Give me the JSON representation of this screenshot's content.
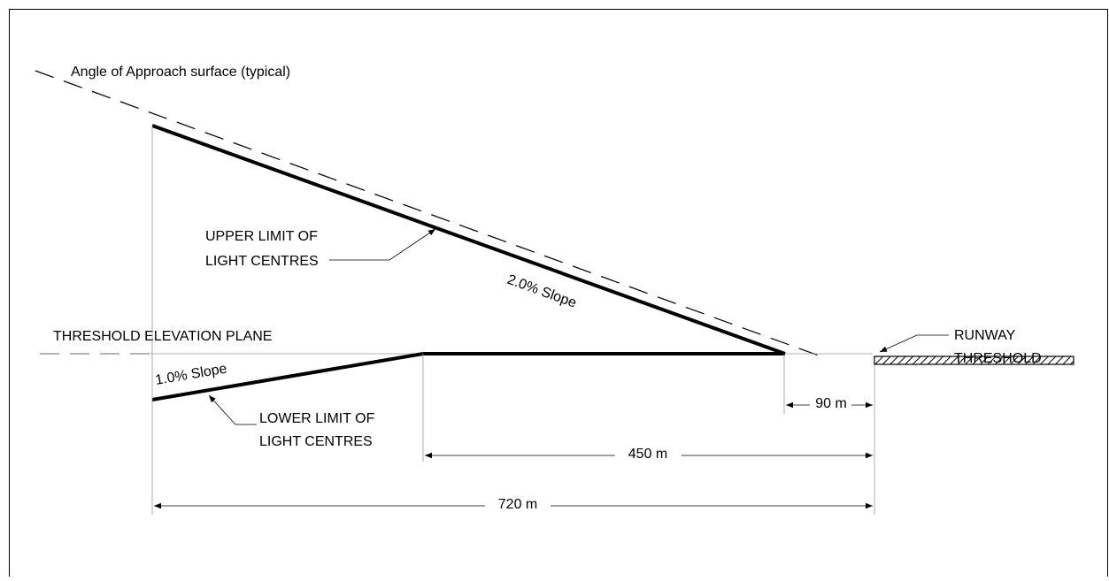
{
  "labels": {
    "approach_surface": "Angle of Approach surface (typical)",
    "upper_limit": [
      "UPPER LIMIT OF",
      "LIGHT CENTRES"
    ],
    "upper_slope": "2.0% Slope",
    "threshold_plane": "THRESHOLD ELEVATION PLANE",
    "runway_threshold": [
      "RUNWAY",
      "THRESHOLD"
    ],
    "lower_slope": "1.0% Slope",
    "lower_limit": [
      "LOWER LIMIT OF",
      "LIGHT CENTRES"
    ],
    "dim_90": "90 m",
    "dim_450": "450 m",
    "dim_720": "720 m"
  }
}
